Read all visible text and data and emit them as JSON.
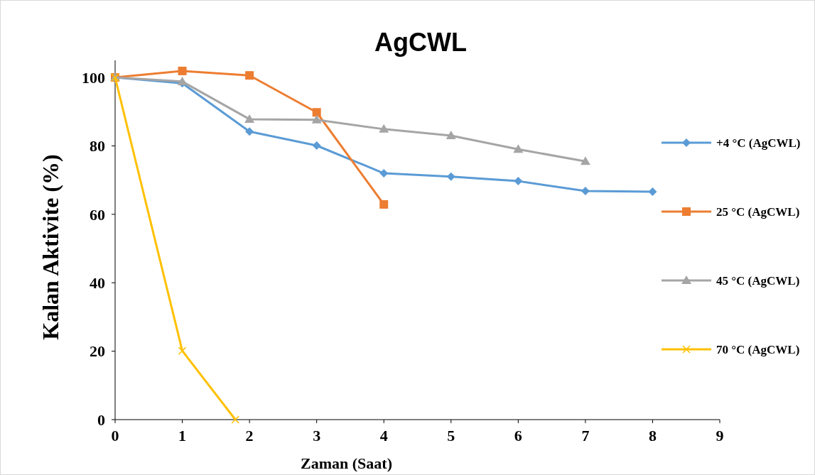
{
  "chart_data": {
    "type": "line",
    "title": "AgCWL",
    "xlabel": "Zaman (Saat)",
    "ylabel": "Kalan Aktivite (%)",
    "x": [
      0,
      1,
      2,
      3,
      4,
      5,
      6,
      7,
      8
    ],
    "series": [
      {
        "name": "+4 °C (AgCWL)",
        "color": "#5b9bd5",
        "marker": "diamond",
        "values": [
          100,
          98.3,
          84.2,
          80.1,
          72,
          71,
          69.7,
          66.8,
          66.6
        ]
      },
      {
        "name": "25 °C (AgCWL)",
        "color": "#ed7d31",
        "marker": "square",
        "values": [
          100,
          101.9,
          100.6,
          89.8,
          62.9,
          null,
          null,
          null,
          null
        ]
      },
      {
        "name": "45 °C (AgCWL)",
        "color": "#a5a5a5",
        "marker": "triangle",
        "values": [
          100,
          98.8,
          87.8,
          87.6,
          84.9,
          83,
          79,
          75.5,
          null
        ]
      },
      {
        "name": "70 °C (AgCWL)",
        "color": "#ffc000",
        "marker": "cross",
        "x": [
          0,
          1,
          1.79
        ],
        "values": [
          100,
          20.1,
          0
        ]
      }
    ],
    "xlim": [
      0,
      9
    ],
    "xticks": [
      0,
      1,
      2,
      3,
      4,
      5,
      6,
      7,
      8,
      9
    ],
    "ylim": [
      0,
      105
    ],
    "yticks": [
      0,
      20,
      40,
      60,
      80,
      100
    ],
    "grid": false,
    "legend": "right",
    "line_style": "solid"
  }
}
